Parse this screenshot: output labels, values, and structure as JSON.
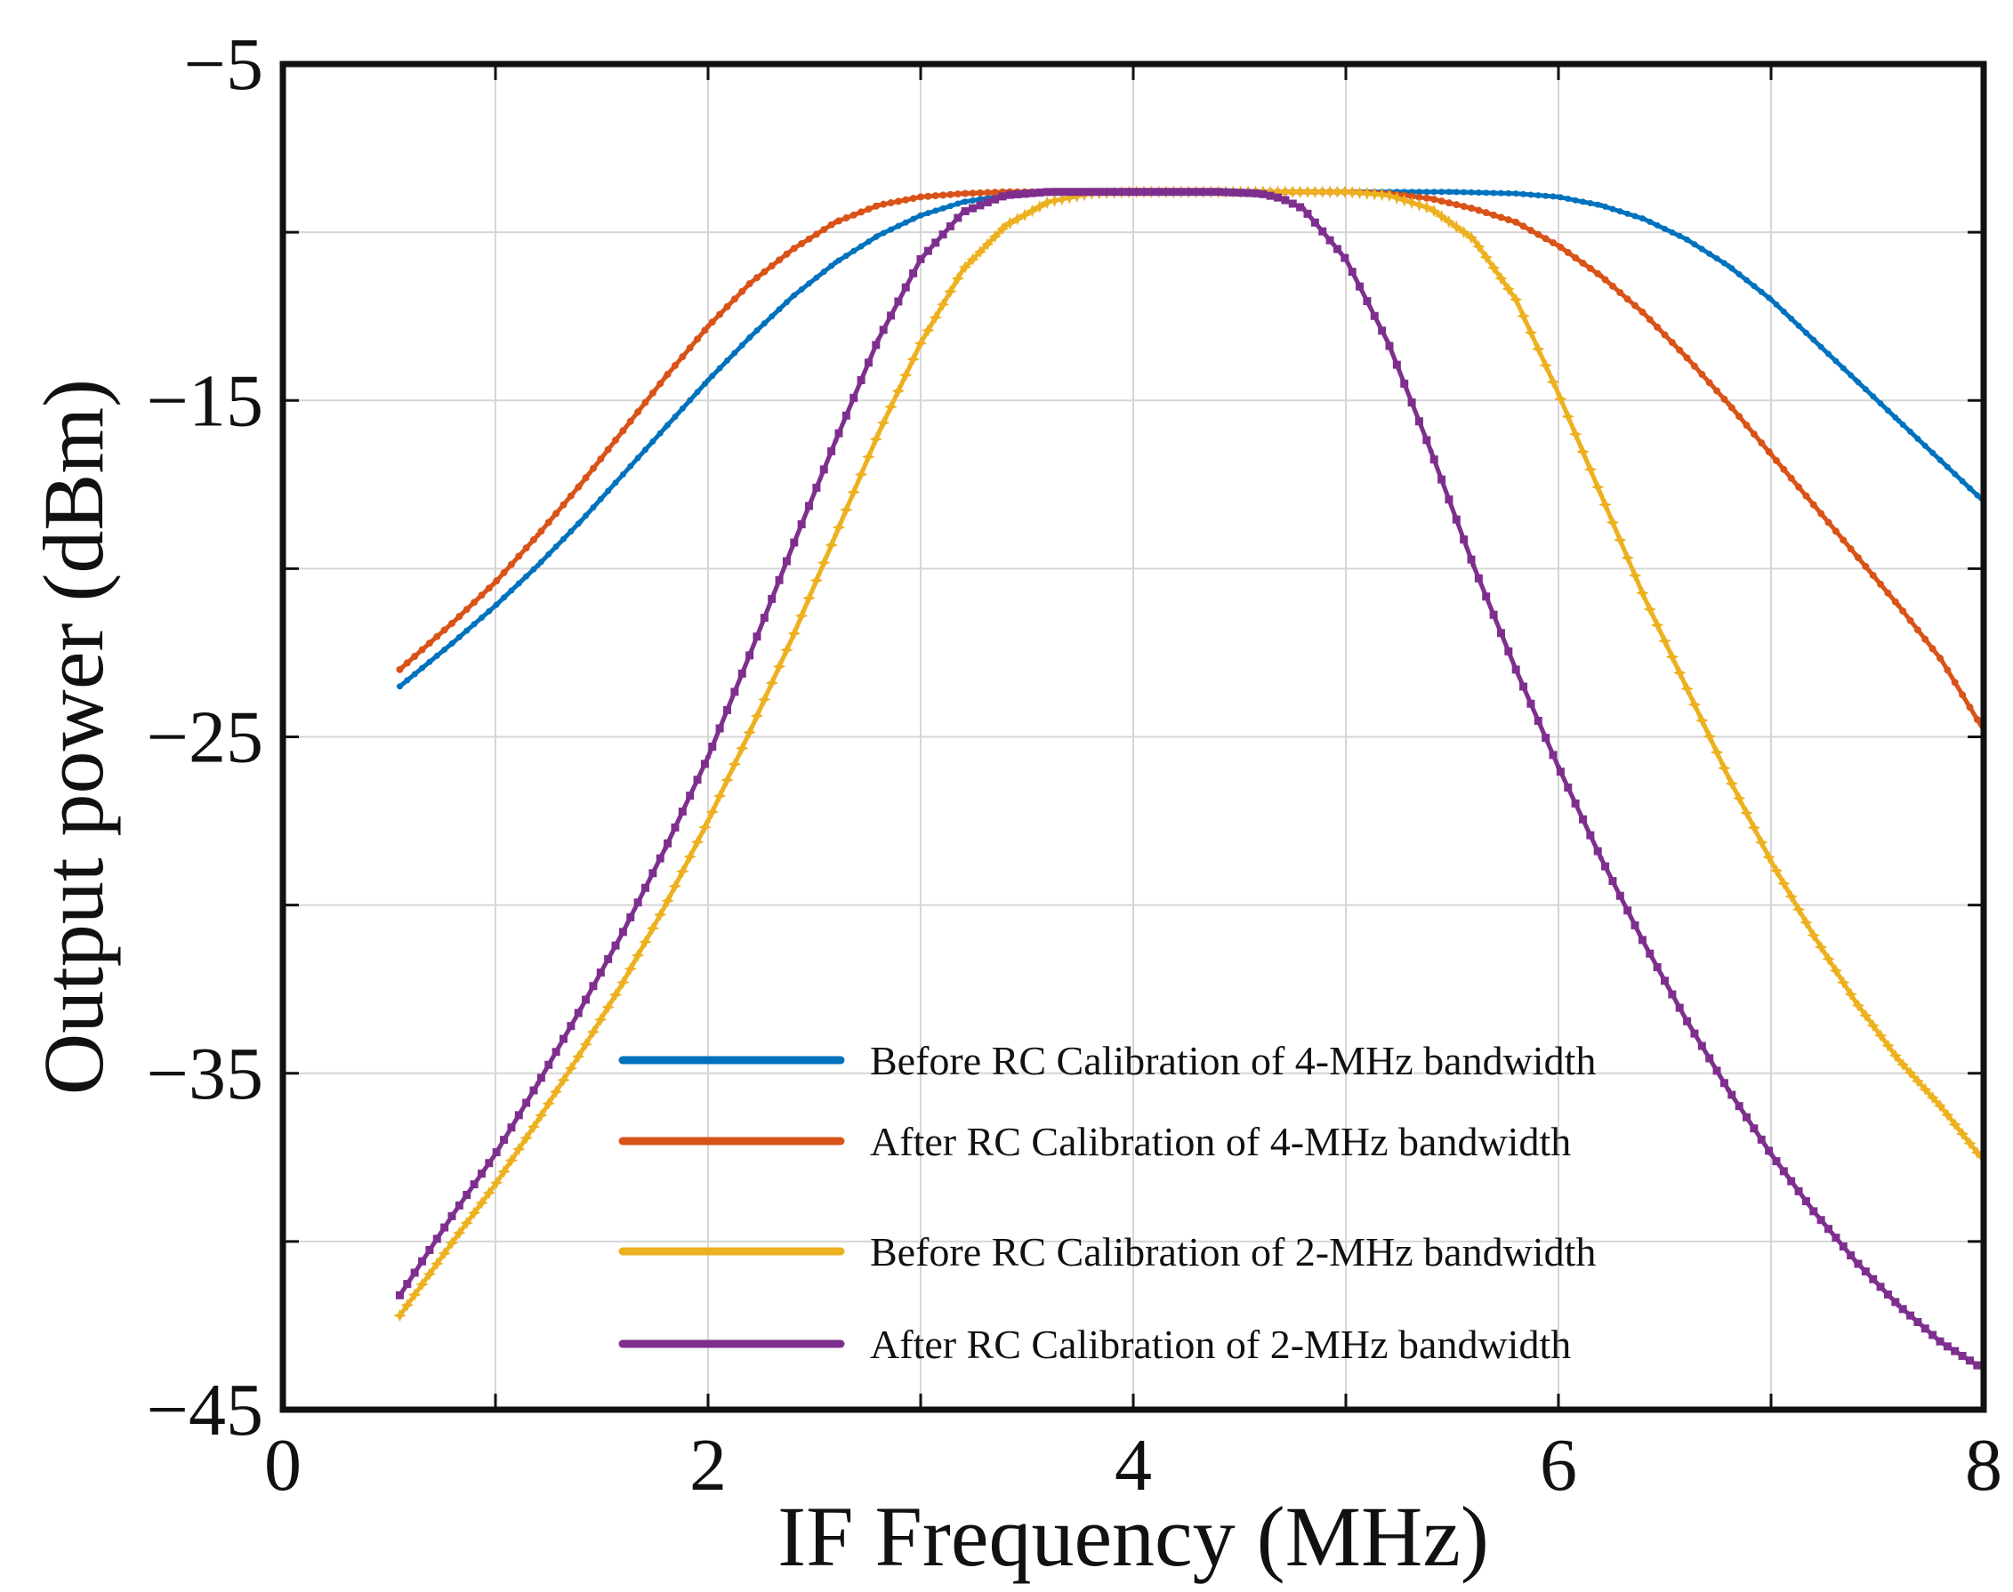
{
  "chart_data": {
    "type": "line",
    "title": "",
    "xlabel": "IF Frequency (MHz)",
    "ylabel": "Output power (dBm)",
    "xlim": [
      0,
      8
    ],
    "ylim": [
      -45,
      -5
    ],
    "grid": true,
    "x_ticks": [
      0,
      2,
      4,
      6,
      8
    ],
    "x_tick_labels": [
      "0",
      "2",
      "4",
      "6",
      "8"
    ],
    "y_ticks": [
      -5,
      -15,
      -25,
      -35,
      -45
    ],
    "y_tick_labels": [
      "−5",
      "−15",
      "−25",
      "−35",
      "−45"
    ],
    "legend_position": "bottom-center",
    "series": [
      {
        "name": "Before RC Calibration of 4-MHz bandwidth",
        "color": "#0072BD",
        "marker": "dot",
        "x": [
          0.55,
          0.8,
          1.0,
          1.2,
          1.4,
          1.6,
          1.8,
          2.0,
          2.2,
          2.4,
          2.6,
          2.8,
          3.0,
          3.2,
          3.4,
          3.6,
          3.8,
          4.0,
          4.5,
          5.0,
          5.5,
          5.8,
          6.0,
          6.2,
          6.4,
          6.6,
          6.8,
          7.0,
          7.2,
          7.4,
          7.6,
          7.8,
          8.0
        ],
        "values": [
          -23.5,
          -22.2,
          -21.1,
          -19.9,
          -18.6,
          -17.2,
          -15.8,
          -14.4,
          -13.1,
          -11.9,
          -10.9,
          -10.1,
          -9.5,
          -9.1,
          -8.9,
          -8.8,
          -8.8,
          -8.8,
          -8.8,
          -8.8,
          -8.8,
          -8.85,
          -8.95,
          -9.2,
          -9.6,
          -10.2,
          -11.0,
          -12.0,
          -13.2,
          -14.4,
          -15.6,
          -16.8,
          -18.0
        ]
      },
      {
        "name": "After RC Calibration of 4-MHz bandwidth",
        "color": "#D95319",
        "marker": "circle",
        "x": [
          0.55,
          0.8,
          1.0,
          1.2,
          1.4,
          1.6,
          1.8,
          2.0,
          2.2,
          2.4,
          2.6,
          2.8,
          3.0,
          3.2,
          3.4,
          3.6,
          4.0,
          4.5,
          5.0,
          5.2,
          5.4,
          5.6,
          5.8,
          6.0,
          6.2,
          6.4,
          6.6,
          6.8,
          7.0,
          7.2,
          7.4,
          7.6,
          7.8,
          8.0
        ],
        "values": [
          -23.0,
          -21.6,
          -20.4,
          -19.0,
          -17.5,
          -15.9,
          -14.3,
          -12.8,
          -11.5,
          -10.5,
          -9.7,
          -9.2,
          -8.95,
          -8.85,
          -8.8,
          -8.8,
          -8.8,
          -8.8,
          -8.8,
          -8.85,
          -9.0,
          -9.3,
          -9.7,
          -10.4,
          -11.3,
          -12.4,
          -13.7,
          -15.1,
          -16.6,
          -18.1,
          -19.6,
          -21.1,
          -22.7,
          -24.8
        ]
      },
      {
        "name": "Before RC Calibration of 2-MHz bandwidth",
        "color": "#EDB120",
        "marker": "star",
        "x": [
          0.55,
          0.8,
          1.0,
          1.2,
          1.4,
          1.6,
          1.8,
          2.0,
          2.2,
          2.4,
          2.6,
          2.8,
          3.0,
          3.2,
          3.4,
          3.6,
          3.8,
          4.0,
          4.5,
          5.0,
          5.2,
          5.4,
          5.6,
          5.8,
          6.0,
          6.2,
          6.4,
          6.6,
          6.8,
          7.0,
          7.2,
          7.4,
          7.6,
          7.8,
          8.0
        ],
        "values": [
          -42.2,
          -40.0,
          -38.3,
          -36.4,
          -34.4,
          -32.3,
          -30.0,
          -27.5,
          -24.8,
          -22.0,
          -19.0,
          -16.0,
          -13.3,
          -11.1,
          -9.8,
          -9.1,
          -8.85,
          -8.8,
          -8.8,
          -8.8,
          -8.9,
          -9.3,
          -10.2,
          -12.0,
          -14.8,
          -17.8,
          -20.8,
          -23.5,
          -26.2,
          -28.7,
          -30.9,
          -32.9,
          -34.6,
          -36.0,
          -37.6
        ]
      },
      {
        "name": "After RC Calibration of 2-MHz bandwidth",
        "color": "#7E2F8E",
        "marker": "square",
        "x": [
          0.55,
          0.8,
          1.0,
          1.2,
          1.4,
          1.6,
          1.8,
          2.0,
          2.2,
          2.4,
          2.6,
          2.8,
          3.0,
          3.2,
          3.4,
          3.6,
          3.8,
          4.0,
          4.4,
          4.6,
          4.7,
          4.8,
          5.0,
          5.2,
          5.4,
          5.6,
          5.8,
          6.0,
          6.2,
          6.4,
          6.6,
          6.8,
          7.0,
          7.2,
          7.4,
          7.6,
          7.8,
          8.0
        ],
        "values": [
          -41.6,
          -39.2,
          -37.4,
          -35.3,
          -33.1,
          -30.8,
          -28.3,
          -25.6,
          -22.5,
          -19.3,
          -16.2,
          -13.2,
          -10.8,
          -9.4,
          -8.9,
          -8.8,
          -8.8,
          -8.8,
          -8.8,
          -8.85,
          -9.0,
          -9.3,
          -10.8,
          -13.3,
          -16.5,
          -19.9,
          -23.0,
          -25.9,
          -28.6,
          -31.1,
          -33.4,
          -35.5,
          -37.4,
          -39.1,
          -40.6,
          -41.9,
          -43.0,
          -43.8
        ]
      }
    ]
  }
}
